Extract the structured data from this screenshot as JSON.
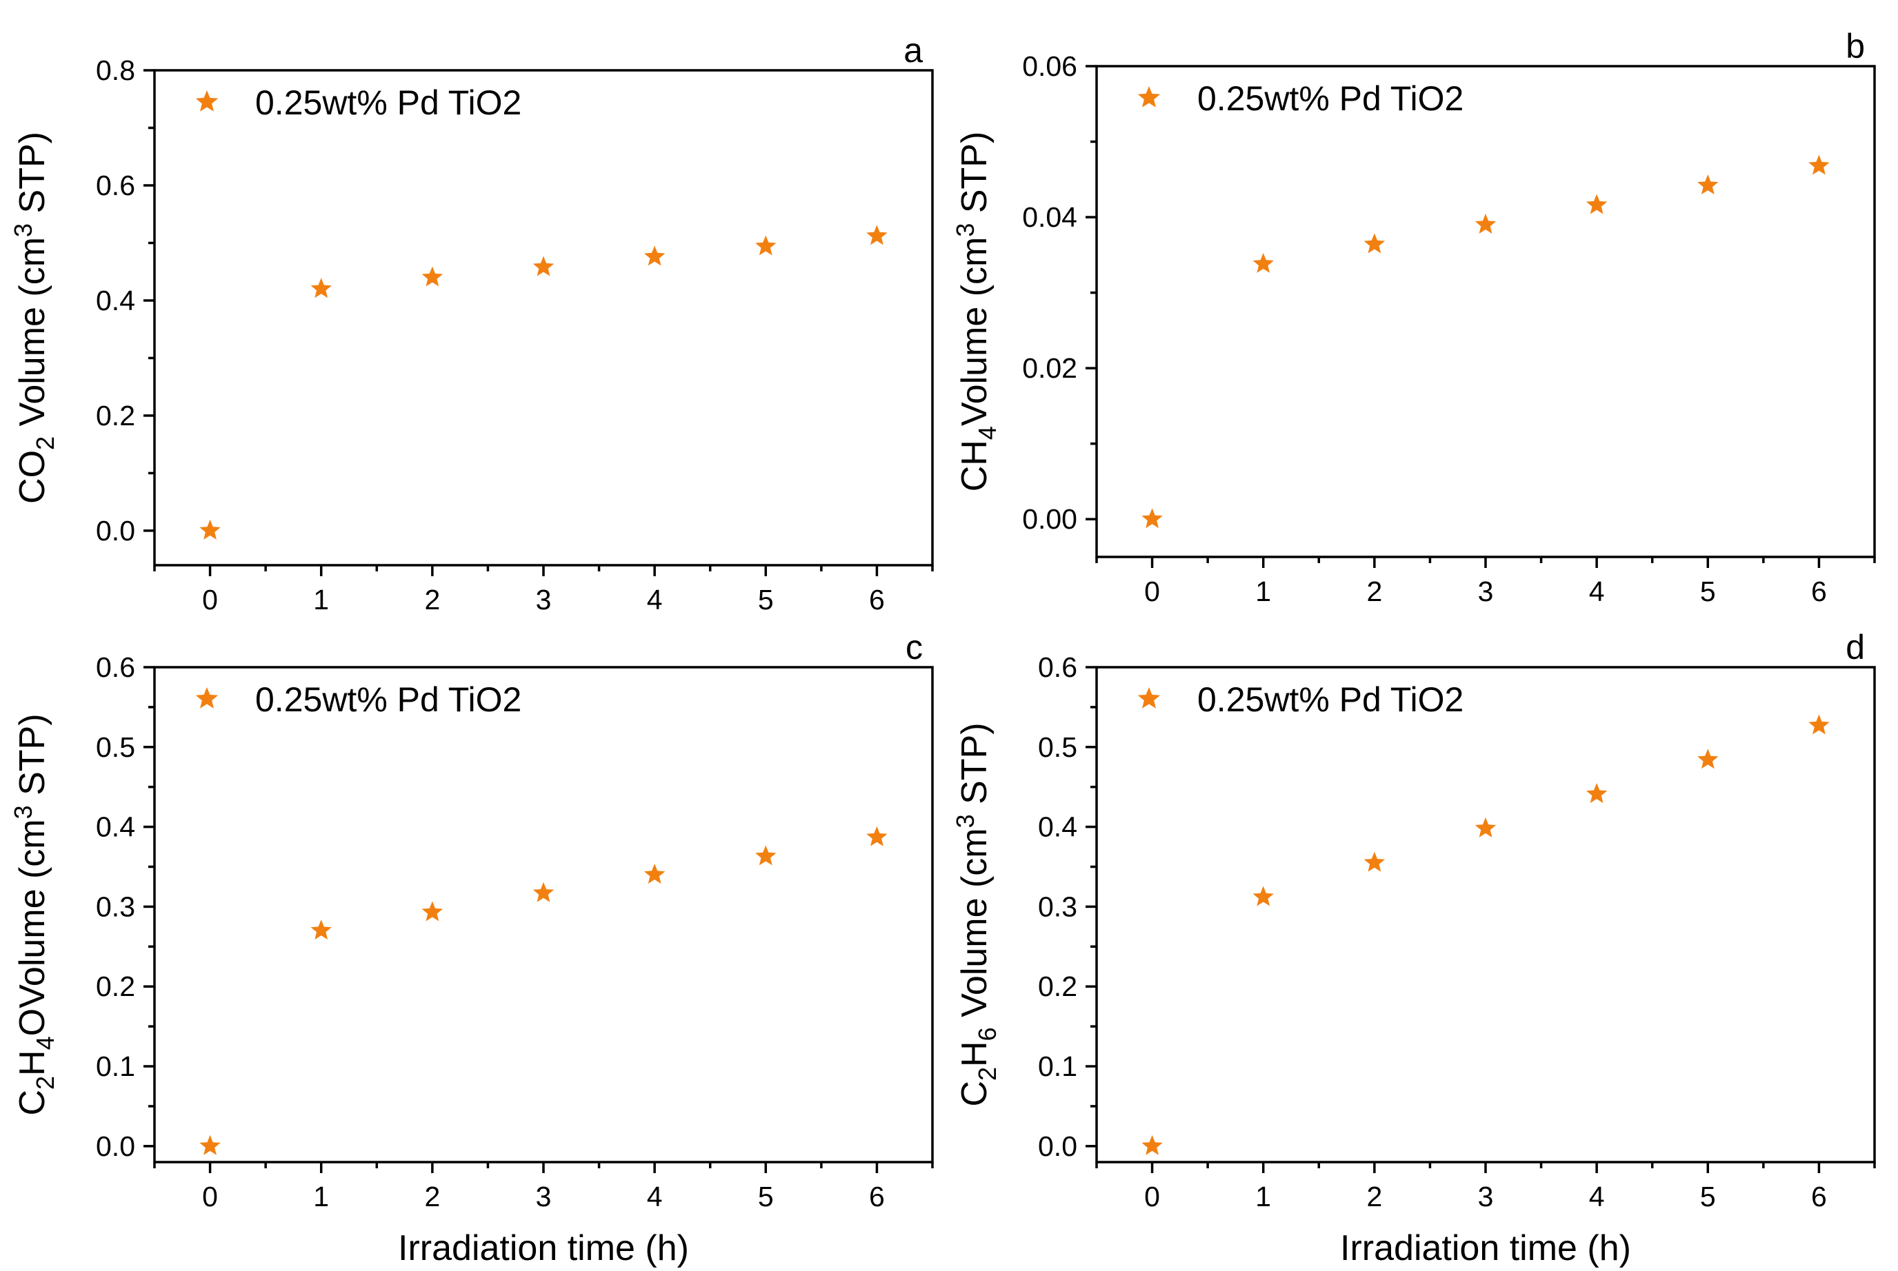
{
  "chart_data": [
    {
      "type": "scatter",
      "panel_label": "a",
      "title": "",
      "xlabel": "",
      "ylabel_parts": [
        "CO",
        "2",
        " Volume (cm",
        "3",
        " STP)"
      ],
      "xlim": [
        -0.5,
        6.5
      ],
      "ylim": [
        -0.06,
        0.8
      ],
      "xticks": [
        0,
        1,
        2,
        3,
        4,
        5,
        6
      ],
      "xtick_labels": [
        "0",
        "1",
        "2",
        "3",
        "4",
        "5",
        "6"
      ],
      "yticks": [
        0.0,
        0.2,
        0.4,
        0.6,
        0.8
      ],
      "ytick_labels": [
        "0.0",
        "0.2",
        "0.4",
        "0.6",
        "0.8"
      ],
      "legend": {
        "position": "top-left",
        "entries": [
          "0.25wt% Pd TiO2"
        ]
      },
      "grid": false,
      "series": [
        {
          "name": "0.25wt% Pd TiO2",
          "color": "#F28010",
          "marker": "star",
          "x": [
            0,
            1,
            2,
            3,
            4,
            5,
            6
          ],
          "y": [
            0.0,
            0.42,
            0.44,
            0.458,
            0.476,
            0.494,
            0.512
          ]
        }
      ]
    },
    {
      "type": "scatter",
      "panel_label": "b",
      "title": "",
      "xlabel": "",
      "ylabel_parts": [
        "CH",
        "4",
        "Volume (cm",
        "3",
        " STP)"
      ],
      "xlim": [
        -0.5,
        6.5
      ],
      "ylim": [
        -0.005,
        0.06
      ],
      "xticks": [
        0,
        1,
        2,
        3,
        4,
        5,
        6
      ],
      "xtick_labels": [
        "0",
        "1",
        "2",
        "3",
        "4",
        "5",
        "6"
      ],
      "yticks": [
        0.0,
        0.02,
        0.04,
        0.06
      ],
      "ytick_labels": [
        "0.00",
        "0.02",
        "0.04",
        "0.06"
      ],
      "legend": {
        "position": "top-left",
        "entries": [
          "0.25wt% Pd TiO2"
        ]
      },
      "grid": false,
      "series": [
        {
          "name": "0.25wt% Pd TiO2",
          "color": "#F28010",
          "marker": "star",
          "x": [
            0,
            1,
            2,
            3,
            4,
            5,
            6
          ],
          "y": [
            0.0,
            0.0338,
            0.0364,
            0.039,
            0.0416,
            0.0442,
            0.0468
          ]
        }
      ]
    },
    {
      "type": "scatter",
      "panel_label": "c",
      "title": "",
      "xlabel": "Irradiation time (h)",
      "ylabel_parts": [
        "C",
        "2",
        "H",
        "4",
        "OVolume (cm",
        "3",
        " STP)"
      ],
      "xlim": [
        -0.5,
        6.5
      ],
      "ylim": [
        -0.02,
        0.6
      ],
      "xticks": [
        0,
        1,
        2,
        3,
        4,
        5,
        6
      ],
      "xtick_labels": [
        "0",
        "1",
        "2",
        "3",
        "4",
        "5",
        "6"
      ],
      "yticks": [
        0.0,
        0.1,
        0.2,
        0.3,
        0.4,
        0.5,
        0.6
      ],
      "ytick_labels": [
        "0.0",
        "0.1",
        "0.2",
        "0.3",
        "0.4",
        "0.5",
        "0.6"
      ],
      "legend": {
        "position": "top-left",
        "entries": [
          "0.25wt% Pd TiO2"
        ]
      },
      "grid": false,
      "series": [
        {
          "name": "0.25wt% Pd TiO2",
          "color": "#F28010",
          "marker": "star",
          "x": [
            0,
            1,
            2,
            3,
            4,
            5,
            6
          ],
          "y": [
            0.0,
            0.27,
            0.293,
            0.317,
            0.34,
            0.363,
            0.387
          ]
        }
      ]
    },
    {
      "type": "scatter",
      "panel_label": "d",
      "title": "",
      "xlabel": "Irradiation time (h)",
      "ylabel_parts": [
        "C",
        "2",
        "H",
        "6",
        " Volume (cm",
        "3",
        " STP)"
      ],
      "xlim": [
        -0.5,
        6.5
      ],
      "ylim": [
        -0.02,
        0.6
      ],
      "xticks": [
        0,
        1,
        2,
        3,
        4,
        5,
        6
      ],
      "xtick_labels": [
        "0",
        "1",
        "2",
        "3",
        "4",
        "5",
        "6"
      ],
      "yticks": [
        0.0,
        0.1,
        0.2,
        0.3,
        0.4,
        0.5,
        0.6
      ],
      "ytick_labels": [
        "0.0",
        "0.1",
        "0.2",
        "0.3",
        "0.4",
        "0.5",
        "0.6"
      ],
      "legend": {
        "position": "top-left",
        "entries": [
          "0.25wt% Pd TiO2"
        ]
      },
      "grid": false,
      "series": [
        {
          "name": "0.25wt% Pd TiO2",
          "color": "#F28010",
          "marker": "star",
          "x": [
            0,
            1,
            2,
            3,
            4,
            5,
            6
          ],
          "y": [
            0.0,
            0.312,
            0.355,
            0.398,
            0.441,
            0.484,
            0.527
          ]
        }
      ]
    }
  ]
}
